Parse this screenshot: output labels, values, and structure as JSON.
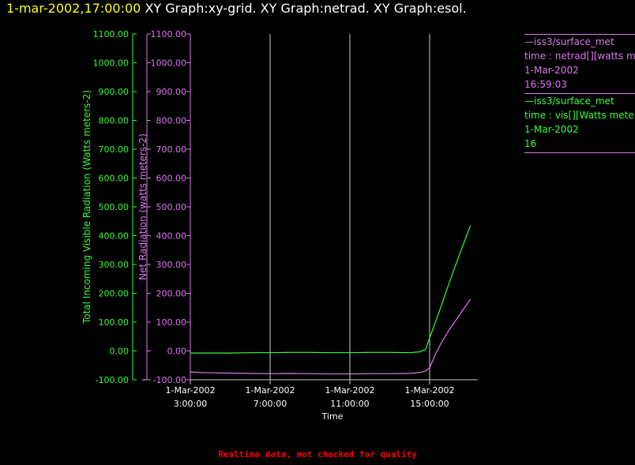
{
  "header": {
    "timestamp": "1-mar-2002,17:00:00",
    "graphs": "XY Graph:xy-grid.  XY Graph:netrad.  XY Graph:esol."
  },
  "colors": {
    "green": "#33ff33",
    "magenta": "#dd77ee",
    "grid": "#cccccc",
    "footer": "#ff0000"
  },
  "legend": [
    {
      "color": "#dd77ee",
      "lines": [
        "—iss3/surface_met",
        "time : netrad[][watts me",
        "1-Mar-2002",
        "16:59:03"
      ]
    },
    {
      "color": "#33ff33",
      "lines": [
        "—iss3/surface_met",
        "time : vis[][Watts mete",
        "1-Mar-2002",
        "16"
      ]
    }
  ],
  "footer": "Realtime data, not checked for quality",
  "chart_data": {
    "type": "line",
    "xlabel": "Time",
    "x_ticks": [
      {
        "value": 3,
        "line1": "1-Mar-2002",
        "line2": "3:00:00"
      },
      {
        "value": 7,
        "line1": "1-Mar-2002",
        "line2": "7:00:00"
      },
      {
        "value": 11,
        "line1": "1-Mar-2002",
        "line2": "11:00:00"
      },
      {
        "value": 15,
        "line1": "1-Mar-2002",
        "line2": "15:00:00"
      }
    ],
    "xlim": [
      3,
      17.1
    ],
    "grid_x": [
      7,
      11,
      15
    ],
    "ylim": [
      -100,
      1100
    ],
    "y_ticks": [
      "-100.00",
      "0.00",
      "100.00",
      "200.00",
      "300.00",
      "400.00",
      "500.00",
      "600.00",
      "700.00",
      "800.00",
      "900.00",
      "1000.00",
      "1100.00"
    ],
    "y_tick_values": [
      -100,
      0,
      100,
      200,
      300,
      400,
      500,
      600,
      700,
      800,
      900,
      1000,
      1100
    ],
    "axes": [
      {
        "name": "esol",
        "ylabel": "Total Incoming Visible Radiation (Watts meters-2)",
        "color": "#33ff33"
      },
      {
        "name": "netrad",
        "ylabel": "Net Radiation (watts meters-2)",
        "color": "#dd77ee"
      }
    ],
    "series": [
      {
        "axis": "esol",
        "color": "#33ff33",
        "x": [
          3,
          4,
          5,
          6,
          7,
          8,
          9,
          10,
          11,
          12,
          13,
          14,
          14.5,
          14.8,
          15,
          15.5,
          16,
          16.5,
          17.05
        ],
        "y": [
          -7,
          -7,
          -7,
          -6,
          -6,
          -5,
          -5,
          -6,
          -6,
          -5,
          -5,
          -6,
          -3,
          5,
          45,
          140,
          240,
          335,
          435
        ]
      },
      {
        "axis": "netrad",
        "color": "#dd77ee",
        "x": [
          3,
          3.5,
          4,
          5,
          6,
          7,
          8,
          9,
          10,
          11,
          12,
          13,
          14,
          14.5,
          14.8,
          15,
          15.3,
          15.6,
          16,
          16.5,
          17.05
        ],
        "y": [
          -73,
          -75,
          -76,
          -77,
          -78,
          -79,
          -78,
          -79,
          -80,
          -80,
          -79,
          -79,
          -78,
          -75,
          -70,
          -58,
          -10,
          30,
          75,
          125,
          180
        ]
      }
    ]
  }
}
